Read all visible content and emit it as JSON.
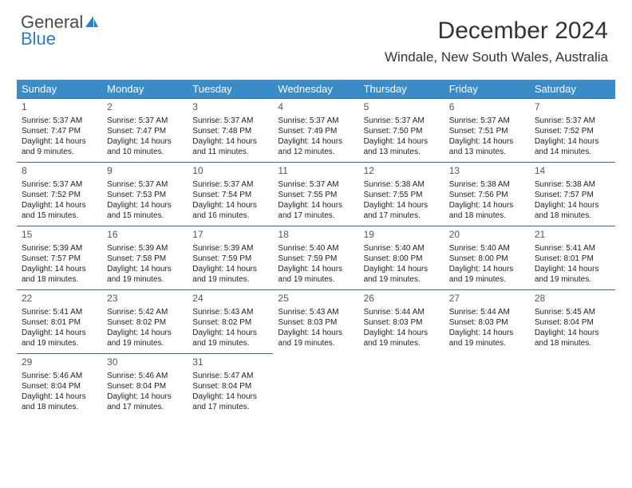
{
  "brand": {
    "general": "General",
    "blue": "Blue"
  },
  "title": "December 2024",
  "location": "Windale, New South Wales, Australia",
  "header_bg": "#3b8bc7",
  "row_border": "#3b6b8f",
  "weekdays": [
    "Sunday",
    "Monday",
    "Tuesday",
    "Wednesday",
    "Thursday",
    "Friday",
    "Saturday"
  ],
  "weeks": [
    [
      {
        "n": "1",
        "sr": "Sunrise: 5:37 AM",
        "ss": "Sunset: 7:47 PM",
        "d1": "Daylight: 14 hours",
        "d2": "and 9 minutes."
      },
      {
        "n": "2",
        "sr": "Sunrise: 5:37 AM",
        "ss": "Sunset: 7:47 PM",
        "d1": "Daylight: 14 hours",
        "d2": "and 10 minutes."
      },
      {
        "n": "3",
        "sr": "Sunrise: 5:37 AM",
        "ss": "Sunset: 7:48 PM",
        "d1": "Daylight: 14 hours",
        "d2": "and 11 minutes."
      },
      {
        "n": "4",
        "sr": "Sunrise: 5:37 AM",
        "ss": "Sunset: 7:49 PM",
        "d1": "Daylight: 14 hours",
        "d2": "and 12 minutes."
      },
      {
        "n": "5",
        "sr": "Sunrise: 5:37 AM",
        "ss": "Sunset: 7:50 PM",
        "d1": "Daylight: 14 hours",
        "d2": "and 13 minutes."
      },
      {
        "n": "6",
        "sr": "Sunrise: 5:37 AM",
        "ss": "Sunset: 7:51 PM",
        "d1": "Daylight: 14 hours",
        "d2": "and 13 minutes."
      },
      {
        "n": "7",
        "sr": "Sunrise: 5:37 AM",
        "ss": "Sunset: 7:52 PM",
        "d1": "Daylight: 14 hours",
        "d2": "and 14 minutes."
      }
    ],
    [
      {
        "n": "8",
        "sr": "Sunrise: 5:37 AM",
        "ss": "Sunset: 7:52 PM",
        "d1": "Daylight: 14 hours",
        "d2": "and 15 minutes."
      },
      {
        "n": "9",
        "sr": "Sunrise: 5:37 AM",
        "ss": "Sunset: 7:53 PM",
        "d1": "Daylight: 14 hours",
        "d2": "and 15 minutes."
      },
      {
        "n": "10",
        "sr": "Sunrise: 5:37 AM",
        "ss": "Sunset: 7:54 PM",
        "d1": "Daylight: 14 hours",
        "d2": "and 16 minutes."
      },
      {
        "n": "11",
        "sr": "Sunrise: 5:37 AM",
        "ss": "Sunset: 7:55 PM",
        "d1": "Daylight: 14 hours",
        "d2": "and 17 minutes."
      },
      {
        "n": "12",
        "sr": "Sunrise: 5:38 AM",
        "ss": "Sunset: 7:55 PM",
        "d1": "Daylight: 14 hours",
        "d2": "and 17 minutes."
      },
      {
        "n": "13",
        "sr": "Sunrise: 5:38 AM",
        "ss": "Sunset: 7:56 PM",
        "d1": "Daylight: 14 hours",
        "d2": "and 18 minutes."
      },
      {
        "n": "14",
        "sr": "Sunrise: 5:38 AM",
        "ss": "Sunset: 7:57 PM",
        "d1": "Daylight: 14 hours",
        "d2": "and 18 minutes."
      }
    ],
    [
      {
        "n": "15",
        "sr": "Sunrise: 5:39 AM",
        "ss": "Sunset: 7:57 PM",
        "d1": "Daylight: 14 hours",
        "d2": "and 18 minutes."
      },
      {
        "n": "16",
        "sr": "Sunrise: 5:39 AM",
        "ss": "Sunset: 7:58 PM",
        "d1": "Daylight: 14 hours",
        "d2": "and 19 minutes."
      },
      {
        "n": "17",
        "sr": "Sunrise: 5:39 AM",
        "ss": "Sunset: 7:59 PM",
        "d1": "Daylight: 14 hours",
        "d2": "and 19 minutes."
      },
      {
        "n": "18",
        "sr": "Sunrise: 5:40 AM",
        "ss": "Sunset: 7:59 PM",
        "d1": "Daylight: 14 hours",
        "d2": "and 19 minutes."
      },
      {
        "n": "19",
        "sr": "Sunrise: 5:40 AM",
        "ss": "Sunset: 8:00 PM",
        "d1": "Daylight: 14 hours",
        "d2": "and 19 minutes."
      },
      {
        "n": "20",
        "sr": "Sunrise: 5:40 AM",
        "ss": "Sunset: 8:00 PM",
        "d1": "Daylight: 14 hours",
        "d2": "and 19 minutes."
      },
      {
        "n": "21",
        "sr": "Sunrise: 5:41 AM",
        "ss": "Sunset: 8:01 PM",
        "d1": "Daylight: 14 hours",
        "d2": "and 19 minutes."
      }
    ],
    [
      {
        "n": "22",
        "sr": "Sunrise: 5:41 AM",
        "ss": "Sunset: 8:01 PM",
        "d1": "Daylight: 14 hours",
        "d2": "and 19 minutes."
      },
      {
        "n": "23",
        "sr": "Sunrise: 5:42 AM",
        "ss": "Sunset: 8:02 PM",
        "d1": "Daylight: 14 hours",
        "d2": "and 19 minutes."
      },
      {
        "n": "24",
        "sr": "Sunrise: 5:43 AM",
        "ss": "Sunset: 8:02 PM",
        "d1": "Daylight: 14 hours",
        "d2": "and 19 minutes."
      },
      {
        "n": "25",
        "sr": "Sunrise: 5:43 AM",
        "ss": "Sunset: 8:03 PM",
        "d1": "Daylight: 14 hours",
        "d2": "and 19 minutes."
      },
      {
        "n": "26",
        "sr": "Sunrise: 5:44 AM",
        "ss": "Sunset: 8:03 PM",
        "d1": "Daylight: 14 hours",
        "d2": "and 19 minutes."
      },
      {
        "n": "27",
        "sr": "Sunrise: 5:44 AM",
        "ss": "Sunset: 8:03 PM",
        "d1": "Daylight: 14 hours",
        "d2": "and 19 minutes."
      },
      {
        "n": "28",
        "sr": "Sunrise: 5:45 AM",
        "ss": "Sunset: 8:04 PM",
        "d1": "Daylight: 14 hours",
        "d2": "and 18 minutes."
      }
    ],
    [
      {
        "n": "29",
        "sr": "Sunrise: 5:46 AM",
        "ss": "Sunset: 8:04 PM",
        "d1": "Daylight: 14 hours",
        "d2": "and 18 minutes."
      },
      {
        "n": "30",
        "sr": "Sunrise: 5:46 AM",
        "ss": "Sunset: 8:04 PM",
        "d1": "Daylight: 14 hours",
        "d2": "and 17 minutes."
      },
      {
        "n": "31",
        "sr": "Sunrise: 5:47 AM",
        "ss": "Sunset: 8:04 PM",
        "d1": "Daylight: 14 hours",
        "d2": "and 17 minutes."
      },
      null,
      null,
      null,
      null
    ]
  ]
}
